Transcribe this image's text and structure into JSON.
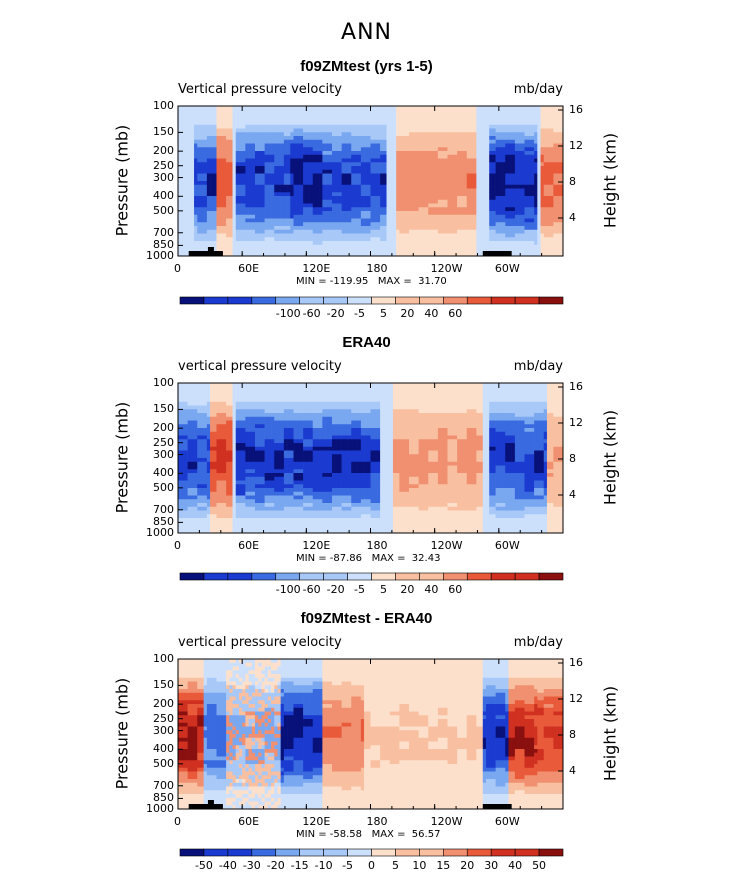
{
  "figure": {
    "title": "ANN",
    "axis_labels": {
      "left": "Pressure  (mb)",
      "right": "Height  (km)"
    },
    "colors": {
      "dark_blue": "#08107a",
      "blue": "#1a3ad0",
      "mid_blue": "#3a6ae0",
      "light_blue": "#7aa8f0",
      "pale_blue": "#a8c8f8",
      "faint_blue": "#cce0fb",
      "faint_orange": "#fde0cc",
      "pale_orange": "#f8c0a0",
      "light_orange": "#f09070",
      "orange": "#e85a3a",
      "red": "#d03020",
      "dark_red": "#8a1010",
      "land": "#000000"
    }
  },
  "chart_data": [
    {
      "type": "heatmap",
      "title": "f09ZMtest (yrs 1-5)",
      "variable": "Vertical pressure velocity",
      "units": "mb/day",
      "min_max": "MIN = -119.95   MAX =  31.70",
      "x_ticks": [
        "0",
        "60E",
        "120E",
        "180",
        "120W",
        "60W"
      ],
      "x_tick_lon": [
        0,
        60,
        120,
        180,
        240,
        300
      ],
      "xlim": [
        0,
        360
      ],
      "y_ticks_pressure": [
        "100",
        "150",
        "200",
        "250",
        "300",
        "400",
        "500",
        "700",
        "850",
        "1000"
      ],
      "y_ticks_height": [
        "16",
        "12",
        "8",
        "4"
      ],
      "ylim": [
        1000,
        100
      ],
      "y_scale": "log",
      "colorbar_levels": [
        "-100",
        "-60",
        "-20",
        "-5",
        "5",
        "20",
        "40",
        "60"
      ],
      "colorbar_n_boxes": 16,
      "colormap": "blue-white-red",
      "features": [
        {
          "lon": [
            15,
            35
          ],
          "sign": "negative",
          "strength": 0.8
        },
        {
          "lon": [
            35,
            50
          ],
          "sign": "positive",
          "strength": 0.6
        },
        {
          "lon": [
            55,
            105
          ],
          "sign": "negative",
          "strength": 0.8
        },
        {
          "lon": [
            105,
            135
          ],
          "sign": "negative",
          "strength": 0.95
        },
        {
          "lon": [
            135,
            195
          ],
          "sign": "negative",
          "strength": 0.8
        },
        {
          "lon": [
            205,
            280
          ],
          "sign": "positive",
          "strength": 0.45
        },
        {
          "lon": [
            290,
            335
          ],
          "sign": "negative",
          "strength": 0.95
        },
        {
          "lon": [
            340,
            360
          ],
          "sign": "positive",
          "strength": 0.6
        }
      ]
    },
    {
      "type": "heatmap",
      "title": "ERA40",
      "variable": "vertical pressure velocity",
      "units": "mb/day",
      "min_max": "MIN = -87.86   MAX =  32.43",
      "x_ticks": [
        "0",
        "60E",
        "120E",
        "180",
        "120W",
        "60W"
      ],
      "x_tick_lon": [
        0,
        60,
        120,
        180,
        240,
        300
      ],
      "xlim": [
        0,
        360
      ],
      "y_ticks_pressure": [
        "100",
        "150",
        "200",
        "250",
        "300",
        "400",
        "500",
        "700",
        "850",
        "1000"
      ],
      "y_ticks_height": [
        "16",
        "12",
        "8",
        "4"
      ],
      "ylim": [
        1000,
        100
      ],
      "y_scale": "log",
      "colorbar_levels": [
        "-100",
        "-60",
        "-20",
        "-5",
        "5",
        "20",
        "40",
        "60"
      ],
      "colorbar_n_boxes": 16,
      "colormap": "blue-white-red",
      "features": [
        {
          "lon": [
            0,
            30
          ],
          "sign": "negative",
          "strength": 0.75
        },
        {
          "lon": [
            30,
            50
          ],
          "sign": "positive",
          "strength": 0.7
        },
        {
          "lon": [
            55,
            120
          ],
          "sign": "negative",
          "strength": 0.85
        },
        {
          "lon": [
            120,
            190
          ],
          "sign": "negative",
          "strength": 0.85
        },
        {
          "lon": [
            200,
            285
          ],
          "sign": "positive",
          "strength": 0.4
        },
        {
          "lon": [
            290,
            345
          ],
          "sign": "negative",
          "strength": 0.8
        },
        {
          "lon": [
            345,
            360
          ],
          "sign": "positive",
          "strength": 0.35
        }
      ]
    },
    {
      "type": "heatmap",
      "title": "f09ZMtest - ERA40",
      "variable": "vertical pressure velocity",
      "units": "mb/day",
      "min_max": "MIN = -58.58   MAX =  56.57",
      "x_ticks": [
        "0",
        "60E",
        "120E",
        "180",
        "120W",
        "60W"
      ],
      "x_tick_lon": [
        0,
        60,
        120,
        180,
        240,
        300
      ],
      "xlim": [
        0,
        360
      ],
      "y_ticks_pressure": [
        "100",
        "150",
        "200",
        "250",
        "300",
        "400",
        "500",
        "700",
        "850",
        "1000"
      ],
      "y_ticks_height": [
        "16",
        "12",
        "8",
        "4"
      ],
      "ylim": [
        1000,
        100
      ],
      "y_scale": "log",
      "colorbar_levels": [
        "-50",
        "-40",
        "-30",
        "-20",
        "-15",
        "-10",
        "-5",
        "0",
        "5",
        "10",
        "15",
        "20",
        "30",
        "40",
        "50"
      ],
      "colorbar_n_boxes": 16,
      "colormap": "blue-white-red",
      "features": [
        {
          "lon": [
            0,
            25
          ],
          "sign": "positive",
          "strength": 0.9
        },
        {
          "lon": [
            25,
            45
          ],
          "sign": "negative",
          "strength": 0.6
        },
        {
          "lon": [
            45,
            95
          ],
          "sign": "mixed",
          "strength": 0.4
        },
        {
          "lon": [
            95,
            135
          ],
          "sign": "negative",
          "strength": 0.95
        },
        {
          "lon": [
            135,
            175
          ],
          "sign": "positive",
          "strength": 0.5
        },
        {
          "lon": [
            175,
            285
          ],
          "sign": "positive",
          "strength": 0.2
        },
        {
          "lon": [
            285,
            310
          ],
          "sign": "negative",
          "strength": 0.85
        },
        {
          "lon": [
            310,
            335
          ],
          "sign": "positive",
          "strength": 0.85
        },
        {
          "lon": [
            335,
            360
          ],
          "sign": "positive",
          "strength": 0.75
        }
      ]
    }
  ]
}
